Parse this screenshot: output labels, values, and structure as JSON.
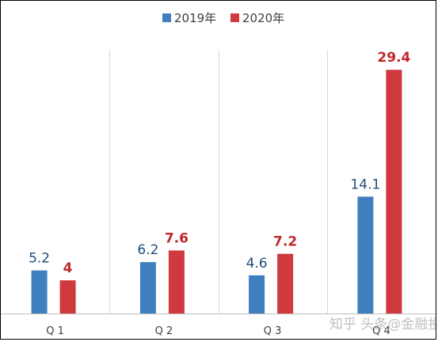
{
  "chart_data": {
    "type": "bar",
    "categories": [
      "Q1",
      "Q2",
      "Q3",
      "Q4"
    ],
    "series": [
      {
        "name": "2019年",
        "values": [
          5.2,
          6.2,
          4.6,
          14.1
        ],
        "color": "#3f7fbf"
      },
      {
        "name": "2020年",
        "values": [
          4,
          7.6,
          7.2,
          29.4
        ],
        "color": "#d0393e"
      }
    ],
    "tick_labels": [
      "Q 1",
      "Q 2",
      "Q 3",
      "Q 4"
    ],
    "data_labels": {
      "2019年": [
        "5.2",
        "6.2",
        "4.6",
        "14.1"
      ],
      "2020年": [
        "4",
        "7.6",
        "7.2",
        "29.4"
      ]
    },
    "ylim": [
      0,
      32
    ],
    "legend_position": "top-center",
    "grid": "vertical separators between categories",
    "colors": {
      "series_2019": "#3f7fbf",
      "series_2020": "#d0393e",
      "label_2019": "#1f4e79",
      "label_2020": "#c0272d",
      "gridline": "#d9d9d9",
      "axis": "#bfbfbf",
      "tick_text": "#404040"
    }
  },
  "watermark": {
    "text": "知乎 头条@金融投资网"
  }
}
